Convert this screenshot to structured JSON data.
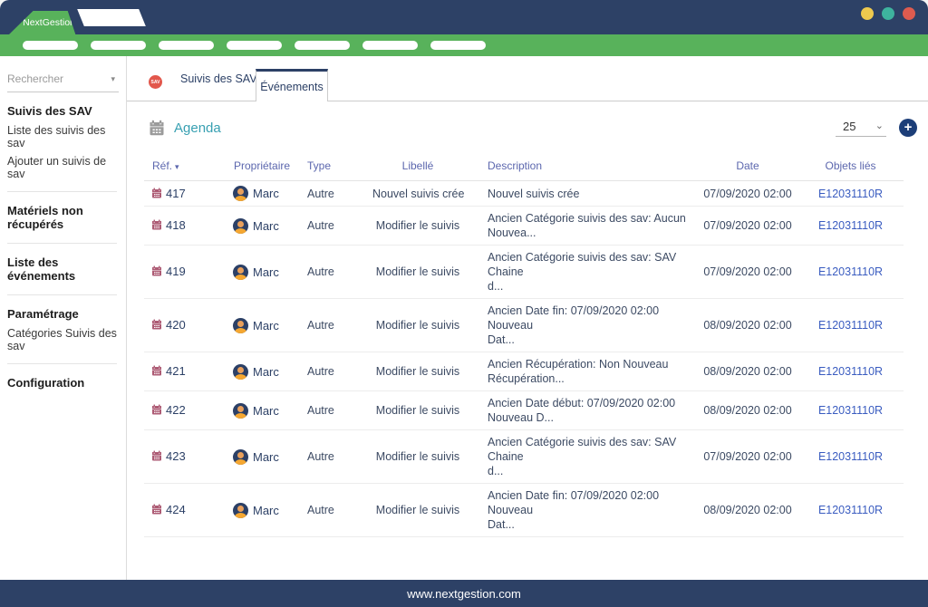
{
  "window": {
    "brand": "NextGestion",
    "traffic_lights": [
      "#eec94e",
      "#3eb39e",
      "#dd5b4f"
    ]
  },
  "nav": {
    "pill_count": 7
  },
  "sidebar": {
    "search": {
      "placeholder": "Rechercher",
      "caret": "▾"
    },
    "sections": [
      {
        "title": "Suivis des SAV",
        "items": [
          "Liste des suivis des sav",
          "Ajouter un suivis de sav"
        ]
      },
      {
        "title": "Matériels non récupérés",
        "items": []
      },
      {
        "title": "Liste des événements",
        "items": []
      },
      {
        "title": "Paramétrage",
        "items": [
          "Catégories Suivis des sav"
        ]
      },
      {
        "title": "Configuration",
        "items": []
      }
    ]
  },
  "tabs": {
    "badge": "SAV",
    "items": [
      {
        "label": "Suivis des SAV",
        "active": false
      },
      {
        "label": "Événements",
        "active": true
      }
    ]
  },
  "toolbar": {
    "title": "Agenda",
    "page_size": "25",
    "icons": {
      "calendar": "calendar-icon",
      "chevron": "⌄",
      "add": "+"
    }
  },
  "table": {
    "sort_icon": "▾",
    "columns": [
      "Réf.",
      "Propriétaire",
      "Type",
      "Libellé",
      "Description",
      "Date",
      "Objets liés"
    ],
    "rows": [
      {
        "ref": "417",
        "owner": "Marc",
        "type": "Autre",
        "label": "Nouvel suivis crée",
        "description": "Nouvel suivis crée",
        "date": "07/09/2020 02:00",
        "linked_object": "E12031110R"
      },
      {
        "ref": "418",
        "owner": "Marc",
        "type": "Autre",
        "label": "Modifier le suivis",
        "description": "Ancien Catégorie suivis des sav: Aucun\nNouvea...",
        "date": "07/09/2020 02:00",
        "linked_object": "E12031110R"
      },
      {
        "ref": "419",
        "owner": "Marc",
        "type": "Autre",
        "label": "Modifier le suivis",
        "description": "Ancien Catégorie suivis des sav: SAV Chaine\nd...",
        "date": "07/09/2020 02:00",
        "linked_object": "E12031110R"
      },
      {
        "ref": "420",
        "owner": "Marc",
        "type": "Autre",
        "label": "Modifier le suivis",
        "description": "Ancien Date fin: 07/09/2020 02:00 Nouveau\nDat...",
        "date": "08/09/2020 02:00",
        "linked_object": "E12031110R"
      },
      {
        "ref": "421",
        "owner": "Marc",
        "type": "Autre",
        "label": "Modifier le suivis",
        "description": "Ancien Récupération: Non Nouveau\nRécupération...",
        "date": "08/09/2020 02:00",
        "linked_object": "E12031110R"
      },
      {
        "ref": "422",
        "owner": "Marc",
        "type": "Autre",
        "label": "Modifier le suivis",
        "description": "Ancien Date début: 07/09/2020 02:00\nNouveau D...",
        "date": "08/09/2020 02:00",
        "linked_object": "E12031110R"
      },
      {
        "ref": "423",
        "owner": "Marc",
        "type": "Autre",
        "label": "Modifier le suivis",
        "description": "Ancien Catégorie suivis des sav: SAV Chaine\nd...",
        "date": "07/09/2020 02:00",
        "linked_object": "E12031110R"
      },
      {
        "ref": "424",
        "owner": "Marc",
        "type": "Autre",
        "label": "Modifier le suivis",
        "description": "Ancien Date fin: 07/09/2020 02:00 Nouveau\nDat...",
        "date": "08/09/2020 02:00",
        "linked_object": "E12031110R"
      }
    ]
  },
  "footer": {
    "url": "www.nextgestion.com"
  },
  "colors": {
    "brand_green": "#58b25b",
    "navy": "#2d4166",
    "link_blue": "#3a5cc0",
    "accent_teal": "#38a0b2",
    "badge_red": "#e2574c"
  }
}
